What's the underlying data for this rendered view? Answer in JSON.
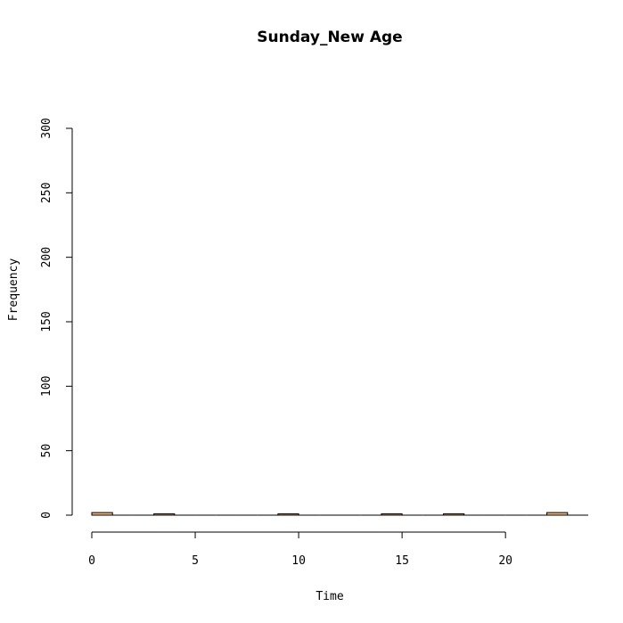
{
  "chart_data": {
    "type": "bar",
    "title": "Sunday_New Age",
    "xlabel": "Time",
    "ylabel": "Frequency",
    "bar_color": "#f4b67c",
    "bin_width": 1,
    "xlim": [
      0,
      24
    ],
    "ylim": [
      0,
      300
    ],
    "x_ticks": [
      0,
      5,
      10,
      15,
      20
    ],
    "y_ticks": [
      0,
      50,
      100,
      150,
      200,
      250,
      300
    ],
    "bins": [
      0,
      1,
      2,
      3,
      4,
      5,
      6,
      7,
      8,
      9,
      10,
      11,
      12,
      13,
      14,
      15,
      16,
      17,
      18,
      19,
      20,
      21,
      22,
      23
    ],
    "values": [
      2,
      0,
      0,
      1,
      0,
      0,
      0,
      0,
      0,
      1,
      0,
      0,
      0,
      0,
      1,
      0,
      0,
      1,
      0,
      0,
      0,
      0,
      2,
      0
    ]
  }
}
